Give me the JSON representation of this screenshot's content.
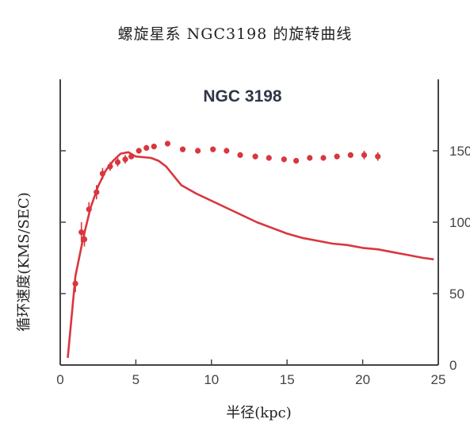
{
  "page": {
    "title": "螺旋星系 NGC3198 的旋转曲线"
  },
  "chart_data": {
    "type": "scatter",
    "title": "NGC 3198",
    "xlabel": "半径(kpc)",
    "ylabel": "循环速度(KMS/SEC)",
    "xlim": [
      0,
      25
    ],
    "ylim": [
      0,
      200
    ],
    "xticks": [
      "0",
      "5",
      "10",
      "15",
      "20",
      "25"
    ],
    "yticks": [
      "0",
      "50",
      "100",
      "150"
    ],
    "grid": false,
    "color": "#d9363e",
    "series": [
      {
        "kind": "points",
        "x": [
          1.0,
          1.4,
          1.6,
          1.9,
          2.4,
          2.8,
          3.3,
          3.8,
          4.3,
          4.7,
          5.2,
          5.7,
          6.2,
          7.1,
          8.1,
          9.1,
          10.1,
          11.0,
          11.9,
          12.9,
          13.8,
          14.8,
          15.6,
          16.5,
          17.4,
          18.3,
          19.2,
          20.1,
          21.0
        ],
        "y": [
          57,
          93,
          88,
          109,
          121,
          134,
          139,
          142,
          144,
          146,
          150,
          152,
          153,
          155,
          151,
          150,
          151,
          150,
          147,
          146,
          145,
          144,
          143,
          145,
          145,
          146,
          147,
          147,
          146
        ],
        "err": [
          6,
          7,
          5,
          5,
          5,
          4,
          3,
          3,
          3,
          2,
          2,
          2,
          2,
          2,
          2,
          2,
          2,
          2,
          2,
          2,
          2,
          2,
          2,
          2,
          2,
          2,
          2,
          3,
          3
        ]
      },
      {
        "kind": "curve",
        "x": [
          0.5,
          1.0,
          1.5,
          2.0,
          2.5,
          3.0,
          3.5,
          4.0,
          4.5,
          5.0,
          6.0,
          6.5,
          7.0,
          8.0,
          9.0,
          10.0,
          11.0,
          12.0,
          13.0,
          14.0,
          15.0,
          16.0,
          17.0,
          18.0,
          19.0,
          20.0,
          21.0,
          22.0,
          23.0,
          24.0,
          24.7
        ],
        "y": [
          5,
          62,
          88,
          110,
          125,
          136,
          143,
          148,
          149,
          146,
          145,
          143,
          139,
          126,
          120,
          115,
          110,
          105,
          100,
          96,
          92,
          89,
          87,
          85,
          84,
          82,
          81,
          79,
          77,
          75,
          74
        ]
      }
    ]
  }
}
